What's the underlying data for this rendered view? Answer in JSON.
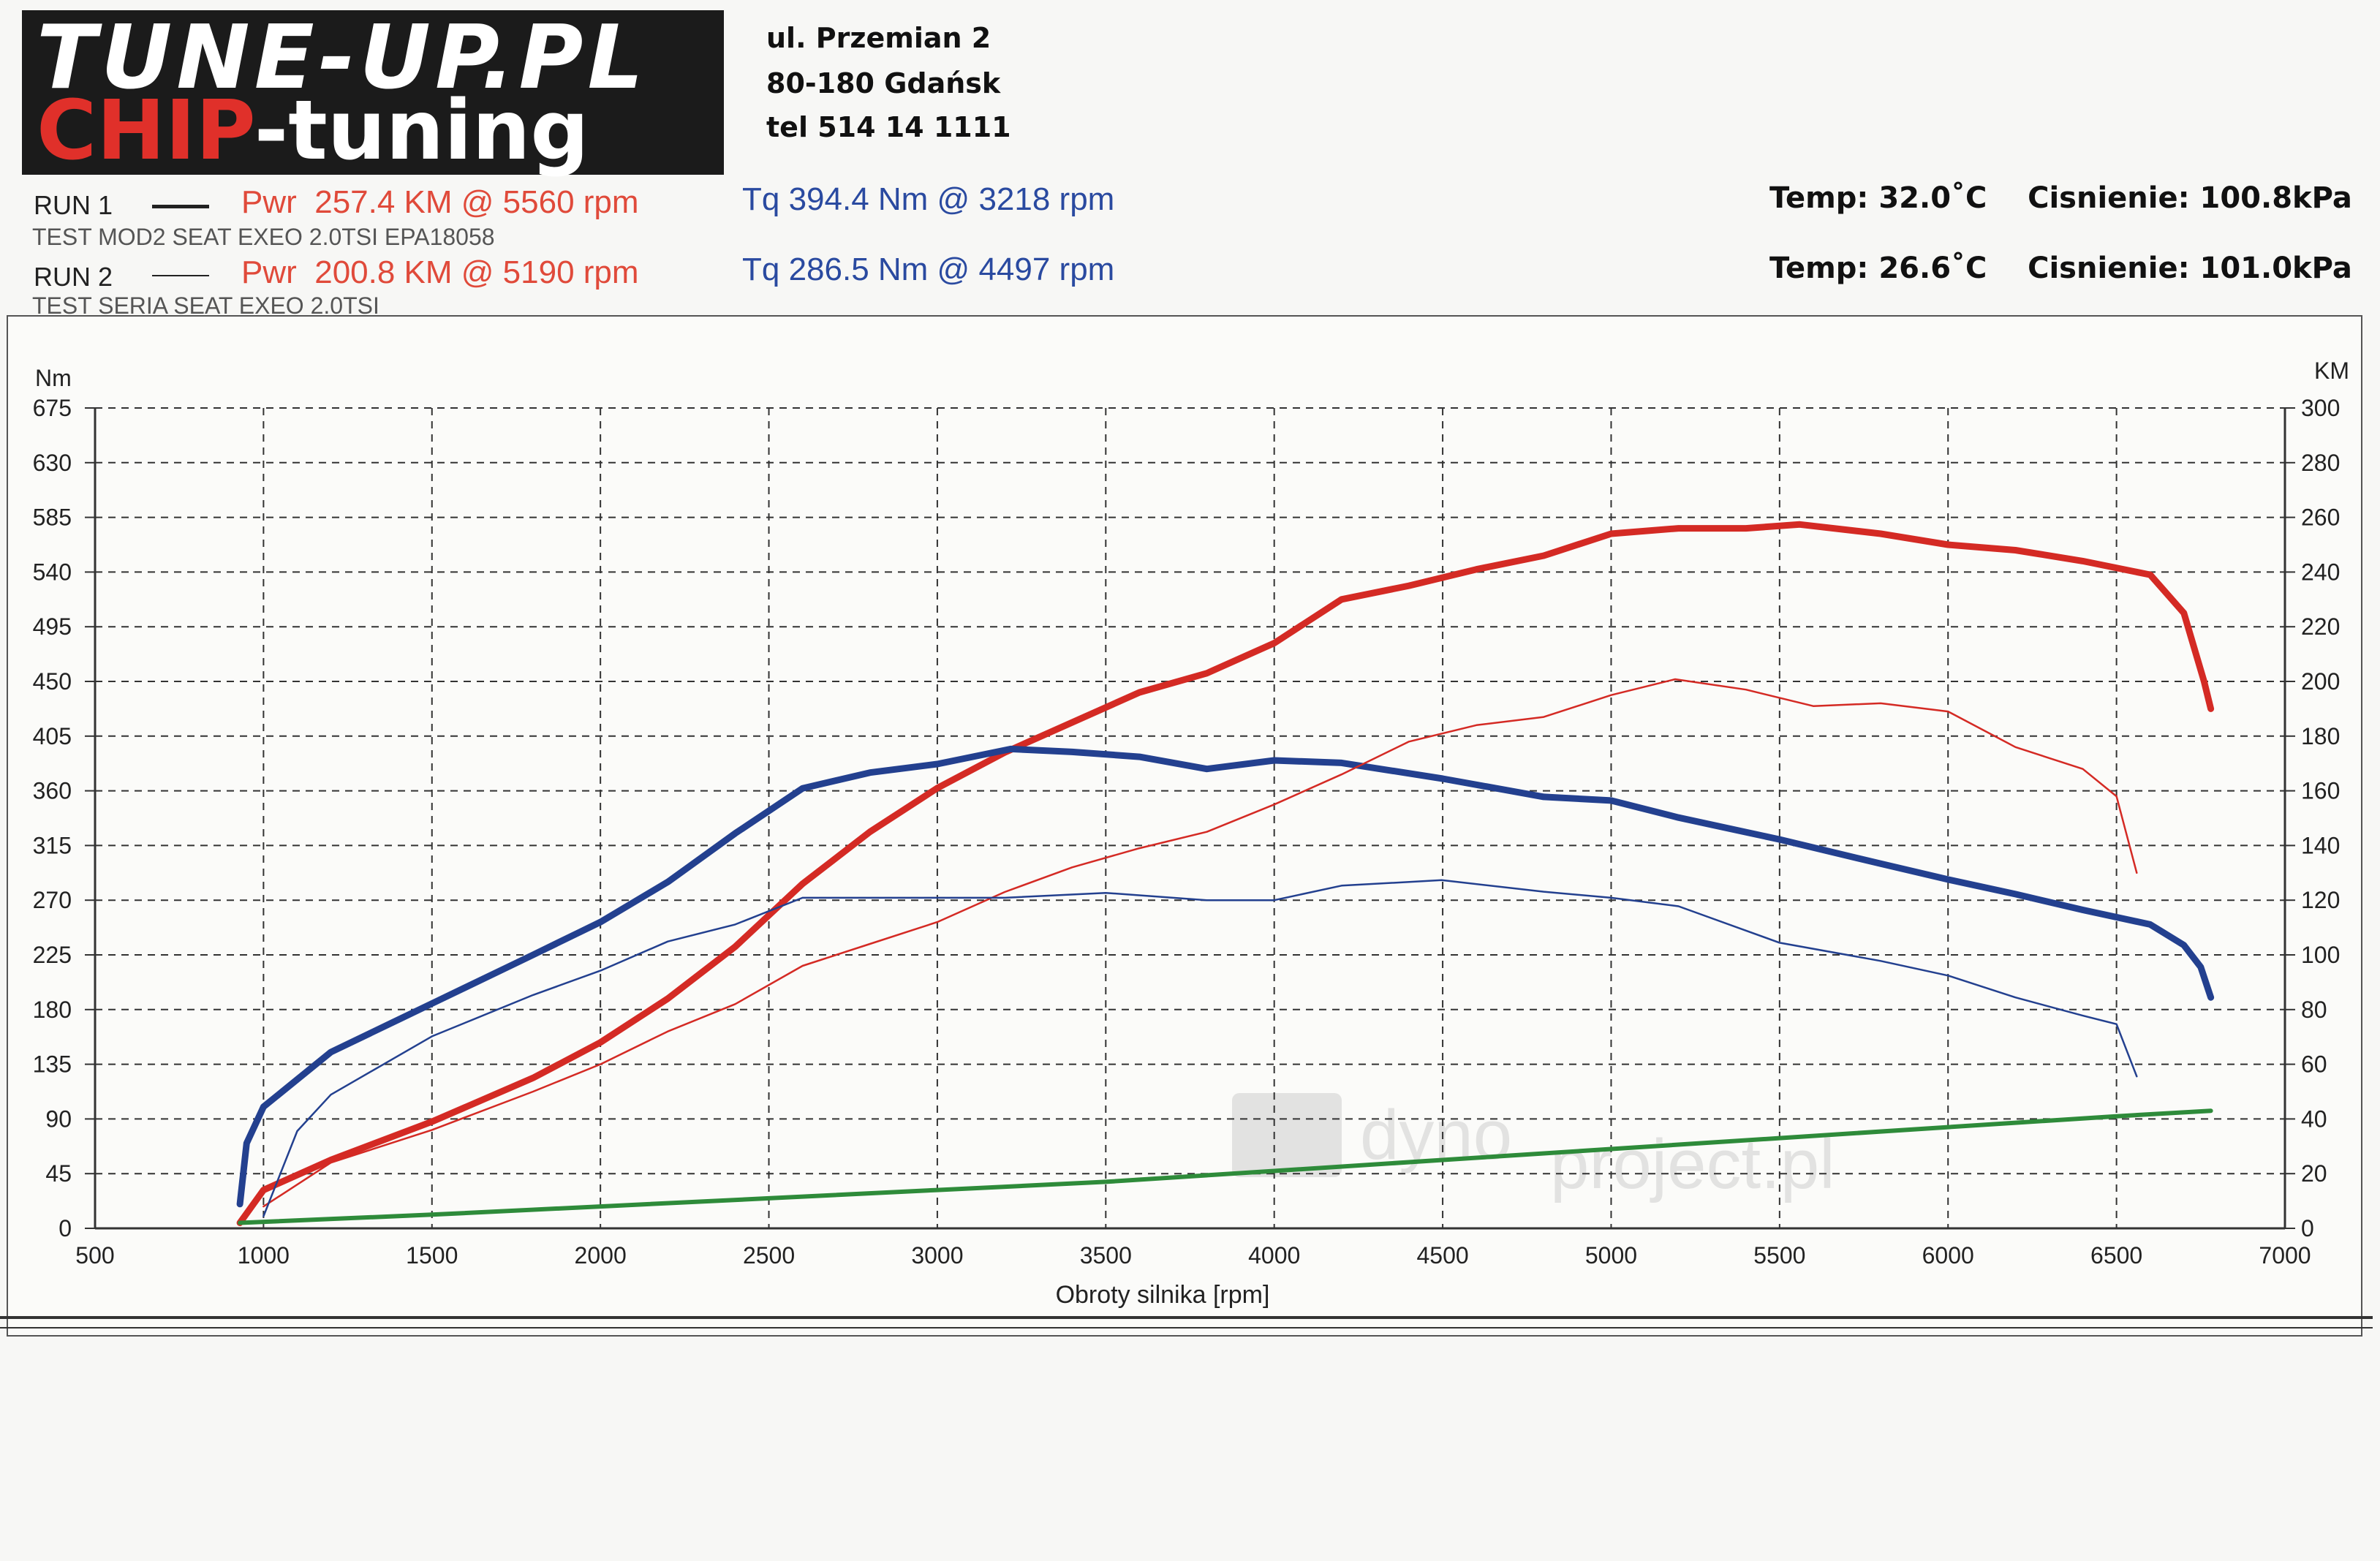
{
  "header": {
    "logo_line1": "TUNE-UP.PL",
    "logo_line2_red": "CHIP",
    "logo_line2_white": "-tuning",
    "address_lines": [
      "ul. Przemian 2",
      "80-180 Gdańsk",
      "tel 514 14 1111"
    ]
  },
  "runs": [
    {
      "label": "RUN 1",
      "power": "Pwr  257.4 KM @ 5560 rpm",
      "torque": "Tq 394.4 Nm @ 3218 rpm",
      "description": "TEST MOD2 SEAT EXEO 2.0TSI EPA18058",
      "conditions": "Temp: 32.0˚C    Cisnienie: 100.8kPa"
    },
    {
      "label": "RUN 2",
      "power": "Pwr  200.8 KM @ 5190 rpm",
      "torque": "Tq 286.5 Nm @ 4497 rpm",
      "description": "TEST SERIA SEAT EXEO 2.0TSI",
      "conditions": "Temp: 26.6˚C    Cisnienie: 101.0kPa"
    }
  ],
  "colors": {
    "power": "#d42a24",
    "torque": "#23408f",
    "loss": "#2e8b3a",
    "grid": "#333333"
  },
  "chart_data": {
    "type": "line",
    "xlabel": "Obroty silnika [rpm]",
    "ylabel_left": "Nm",
    "ylabel_right": "KM",
    "xlim": [
      500,
      7000
    ],
    "ylim_left": [
      0,
      675
    ],
    "ylim_right": [
      0,
      300
    ],
    "x_ticks": [
      500,
      1000,
      1500,
      2000,
      2500,
      3000,
      3500,
      4000,
      4500,
      5000,
      5500,
      6000,
      6500,
      7000
    ],
    "y_ticks_left": [
      0,
      45,
      90,
      135,
      180,
      225,
      270,
      315,
      360,
      405,
      450,
      495,
      540,
      585,
      630,
      675
    ],
    "y_ticks_right": [
      0,
      20,
      40,
      60,
      80,
      100,
      120,
      140,
      160,
      180,
      200,
      220,
      240,
      260,
      280,
      300
    ],
    "grid": true,
    "series": [
      {
        "axis": "right",
        "style": "thick",
        "color_key": "power",
        "x": [
          930,
          1000,
          1200,
          1500,
          1800,
          2000,
          2200,
          2400,
          2600,
          2800,
          3000,
          3200,
          3400,
          3600,
          3800,
          4000,
          4200,
          4400,
          4600,
          4800,
          5000,
          5200,
          5400,
          5560,
          5800,
          6000,
          6200,
          6400,
          6600,
          6700,
          6760,
          6780
        ],
        "y": [
          2,
          14,
          25,
          39,
          55,
          68,
          84,
          103,
          126,
          145,
          161,
          174,
          185,
          196,
          203,
          214,
          230,
          235,
          241,
          246,
          254,
          256,
          256,
          257.4,
          254,
          250,
          248,
          244,
          239,
          225,
          200,
          190
        ]
      },
      {
        "axis": "left",
        "style": "thick",
        "color_key": "torque",
        "x": [
          930,
          950,
          1000,
          1200,
          1500,
          1800,
          2000,
          2200,
          2400,
          2600,
          2800,
          3000,
          3218,
          3400,
          3600,
          3800,
          4000,
          4200,
          4500,
          4800,
          5000,
          5200,
          5500,
          5800,
          6000,
          6200,
          6400,
          6600,
          6700,
          6750,
          6780
        ],
        "y": [
          20,
          70,
          100,
          145,
          185,
          225,
          252,
          285,
          325,
          362,
          375,
          382,
          394.4,
          392,
          388,
          378,
          385,
          383,
          370,
          355,
          352,
          338,
          320,
          300,
          287,
          275,
          262,
          250,
          233,
          215,
          190
        ]
      },
      {
        "axis": "right",
        "style": "thin",
        "color_key": "power",
        "x": [
          1000,
          1200,
          1500,
          1800,
          2000,
          2200,
          2400,
          2600,
          2800,
          3000,
          3200,
          3400,
          3600,
          3800,
          4000,
          4200,
          4400,
          4600,
          4800,
          5000,
          5190,
          5400,
          5600,
          5800,
          6000,
          6200,
          6400,
          6500,
          6560
        ],
        "y": [
          8,
          24,
          36,
          50,
          60,
          72,
          82,
          96,
          104,
          112,
          123,
          132,
          139,
          145,
          155,
          166,
          178,
          184,
          187,
          195,
          200.8,
          197,
          191,
          192,
          189,
          176,
          168,
          158,
          130
        ]
      },
      {
        "axis": "left",
        "style": "thin",
        "color_key": "torque",
        "x": [
          1000,
          1100,
          1200,
          1500,
          1800,
          2000,
          2200,
          2400,
          2600,
          2800,
          3000,
          3200,
          3500,
          3800,
          4000,
          4200,
          4497,
          4800,
          5000,
          5200,
          5500,
          5800,
          6000,
          6200,
          6400,
          6500,
          6560
        ],
        "y": [
          10,
          80,
          110,
          158,
          192,
          212,
          236,
          250,
          272,
          272,
          272,
          272,
          276,
          270,
          270,
          282,
          286.5,
          277,
          272,
          265,
          235,
          220,
          208,
          190,
          175,
          168,
          125
        ]
      },
      {
        "axis": "right",
        "style": "medium",
        "color_key": "loss",
        "x": [
          930,
          1500,
          2000,
          2500,
          3000,
          3500,
          4000,
          4500,
          5000,
          5500,
          6000,
          6500,
          6780
        ],
        "y": [
          2,
          5,
          8,
          11,
          14,
          17,
          21,
          25,
          29,
          33,
          37,
          41,
          43
        ]
      }
    ]
  }
}
